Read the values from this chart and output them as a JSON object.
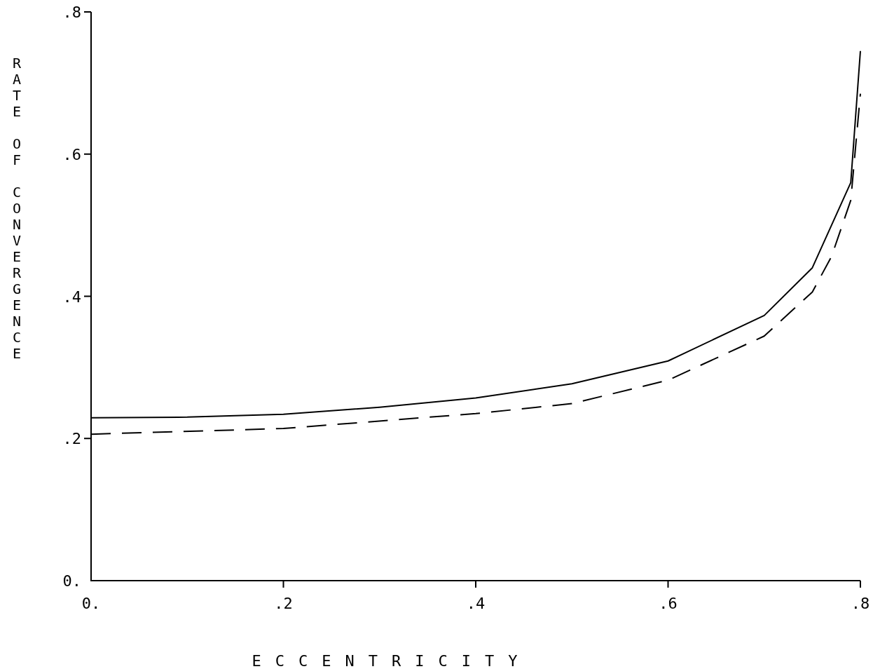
{
  "chart_data": {
    "type": "line",
    "xlabel": "ECCENTRICITY",
    "ylabel": "RATE OF CONVERGENCE",
    "xlim": [
      0,
      0.8
    ],
    "ylim": [
      0,
      0.8
    ],
    "xticks": [
      {
        "value": 0,
        "label": "0."
      },
      {
        "value": 0.2,
        "label": ".2"
      },
      {
        "value": 0.4,
        "label": ".4"
      },
      {
        "value": 0.6,
        "label": ".6"
      },
      {
        "value": 0.8,
        "label": ".8"
      }
    ],
    "yticks": [
      {
        "value": 0,
        "label": "0."
      },
      {
        "value": 0.2,
        "label": ".2"
      },
      {
        "value": 0.4,
        "label": ".4"
      },
      {
        "value": 0.6,
        "label": ".6"
      },
      {
        "value": 0.8,
        "label": ".8"
      }
    ],
    "grid": false,
    "marker": "none",
    "series": [
      {
        "color": "#000000",
        "line_style": "solid",
        "x": [
          0,
          0.1,
          0.2,
          0.3,
          0.4,
          0.5,
          0.6,
          0.7,
          0.75,
          0.79,
          0.8
        ],
        "values": [
          0.229,
          0.23,
          0.234,
          0.244,
          0.257,
          0.277,
          0.309,
          0.373,
          0.44,
          0.56,
          0.745
        ]
      },
      {
        "color": "#000000",
        "line_style": "dashed",
        "x": [
          0,
          0.2,
          0.4,
          0.5,
          0.6,
          0.7,
          0.75,
          0.77,
          0.79,
          0.8
        ],
        "values": [
          0.206,
          0.214,
          0.235,
          0.249,
          0.282,
          0.344,
          0.406,
          0.456,
          0.535,
          0.685
        ]
      }
    ]
  }
}
